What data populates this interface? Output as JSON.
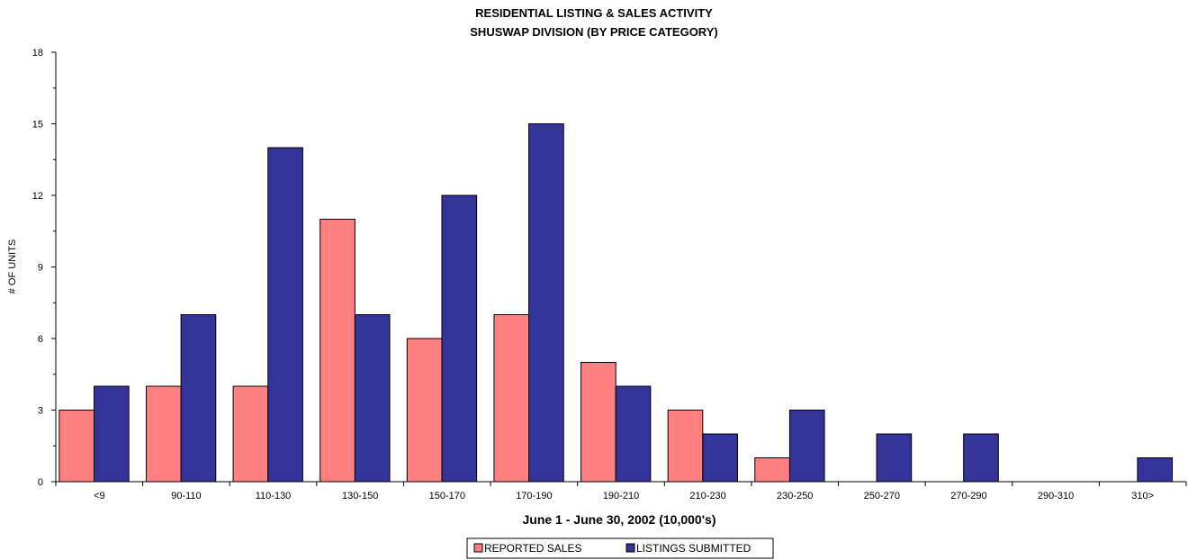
{
  "chart_data": {
    "type": "bar",
    "title": "RESIDENTIAL LISTING & SALES ACTIVITY",
    "subtitle": "SHUSWAP DIVISION (BY PRICE CATEGORY)",
    "xlabel": "June 1 - June 30, 2002 (10,000's)",
    "ylabel": "# OF UNITS",
    "ylim": [
      0,
      18
    ],
    "yticks": [
      0,
      3,
      6,
      9,
      12,
      15,
      18
    ],
    "categories": [
      "<9",
      "90-110",
      "110-130",
      "130-150",
      "150-170",
      "170-190",
      "190-210",
      "210-230",
      "230-250",
      "250-270",
      "270-290",
      "290-310",
      "310>"
    ],
    "series": [
      {
        "name": "REPORTED SALES",
        "color": "#ff8080",
        "values": [
          3,
          4,
          4,
          11,
          6,
          7,
          5,
          3,
          1,
          0,
          0,
          0,
          0
        ]
      },
      {
        "name": "LISTINGS SUBMITTED",
        "color": "#333399",
        "values": [
          4,
          7,
          14,
          7,
          12,
          15,
          4,
          2,
          3,
          2,
          2,
          0,
          1
        ]
      }
    ],
    "grid": false,
    "legend": "bottom-center"
  }
}
